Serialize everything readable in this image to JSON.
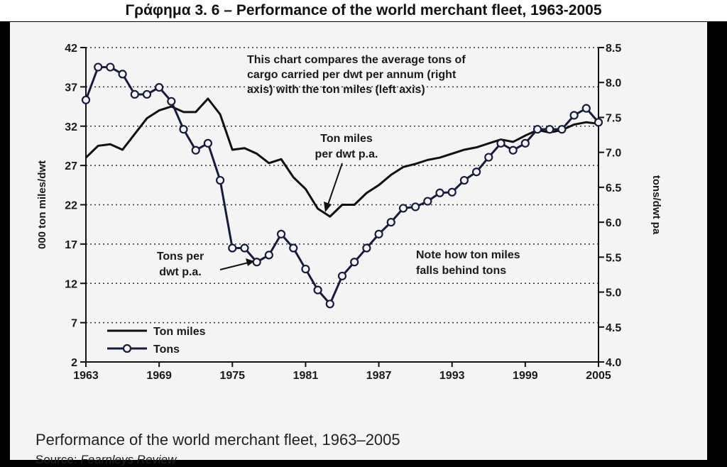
{
  "header": {
    "title": "Γράφημα 3. 6 – Performance of the world merchant fleet, 1963-2005"
  },
  "footer": {
    "caption": "Performance of the world merchant fleet, 1963–2005",
    "source_label": "Source: ",
    "source_value": "Fearnleys Review"
  },
  "chart_data": {
    "type": "line",
    "title": "",
    "xlabel": "",
    "ylabel_left": "000 ton miles/dwt",
    "ylabel_right": "tons/dwt pa",
    "xlim": [
      1963,
      2005
    ],
    "ylim_left": [
      2,
      42
    ],
    "ylim_right": [
      4.0,
      8.5
    ],
    "x_ticks": [
      "1963",
      "1969",
      "1975",
      "1981",
      "1987",
      "1993",
      "1999",
      "2005"
    ],
    "y_left_ticks": [
      "2",
      "7",
      "12",
      "17",
      "22",
      "27",
      "32",
      "37",
      "42"
    ],
    "y_right_ticks": [
      "4.0",
      "4.5",
      "5.0",
      "5.5",
      "6.0",
      "6.5",
      "7.0",
      "7.5",
      "8.0",
      "8.5"
    ],
    "grid": "horizontal dotted",
    "legend_position": "bottom-left",
    "series": [
      {
        "name": "Ton miles",
        "axis": "left",
        "style": "line",
        "x": [
          1963,
          1964,
          1965,
          1966,
          1967,
          1968,
          1969,
          1970,
          1971,
          1972,
          1973,
          1974,
          1975,
          1976,
          1977,
          1978,
          1979,
          1980,
          1981,
          1982,
          1983,
          1984,
          1985,
          1986,
          1987,
          1988,
          1989,
          1990,
          1991,
          1992,
          1993,
          1994,
          1995,
          1996,
          1997,
          1998,
          1999,
          2000,
          2001,
          2002,
          2003,
          2004,
          2005
        ],
        "values": [
          28,
          29.5,
          29.7,
          29,
          31,
          33,
          34,
          34.5,
          33.8,
          33.8,
          35.5,
          33.5,
          29,
          29.2,
          28.5,
          27.3,
          27.8,
          25.5,
          24,
          21.5,
          20.5,
          22,
          22,
          23.5,
          24.5,
          25.8,
          26.8,
          27.2,
          27.7,
          28,
          28.5,
          29,
          29.3,
          29.8,
          30.3,
          30,
          30.8,
          31.5,
          31.2,
          31.5,
          32.2,
          32.5,
          32.3
        ]
      },
      {
        "name": "Tons",
        "axis": "right",
        "style": "line-with-circles",
        "x": [
          1963,
          1964,
          1965,
          1966,
          1967,
          1968,
          1969,
          1970,
          1971,
          1972,
          1973,
          1974,
          1975,
          1976,
          1977,
          1978,
          1979,
          1980,
          1981,
          1982,
          1983,
          1984,
          1985,
          1986,
          1987,
          1988,
          1989,
          1990,
          1991,
          1992,
          1993,
          1994,
          1995,
          1996,
          1997,
          1998,
          1999,
          2000,
          2001,
          2002,
          2003,
          2004,
          2005
        ],
        "values": [
          7.75,
          8.22,
          8.22,
          8.12,
          7.83,
          7.83,
          7.93,
          7.73,
          7.33,
          7.03,
          7.13,
          6.6,
          5.63,
          5.63,
          5.43,
          5.53,
          5.83,
          5.63,
          5.33,
          5.03,
          4.83,
          5.23,
          5.43,
          5.63,
          5.83,
          6.0,
          6.2,
          6.22,
          6.3,
          6.42,
          6.43,
          6.6,
          6.72,
          6.93,
          7.13,
          7.03,
          7.13,
          7.33,
          7.33,
          7.33,
          7.53,
          7.63,
          7.43
        ]
      }
    ],
    "annotations": [
      {
        "id": "intro",
        "lines": [
          "This chart compares the average tons of",
          "cargo carried per dwt per annum (right",
          "axis) with the ton miles (left axis)"
        ]
      },
      {
        "id": "ton-miles",
        "lines": [
          "Ton miles",
          "per dwt p.a."
        ]
      },
      {
        "id": "tons-per",
        "lines": [
          "Tons per",
          "dwt p.a."
        ]
      },
      {
        "id": "note",
        "lines": [
          "Note how ton miles",
          "falls behind tons"
        ]
      }
    ]
  }
}
